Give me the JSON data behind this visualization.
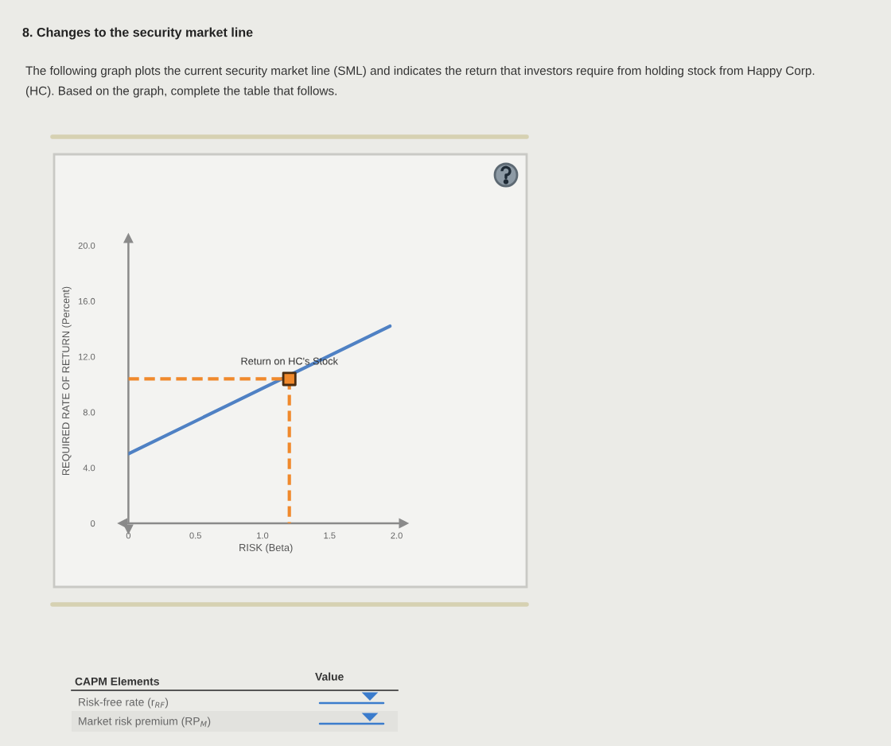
{
  "chart_data": {
    "type": "line",
    "title": "8. Changes to the security market line",
    "subtitle": "The following graph plots the current security market line (SML) and indicates the return that investors require from holding stock from Happy Corp. (HC). Based on the graph, complete the table that follows.",
    "xlabel": "RISK (Beta)",
    "ylabel": "REQUIRED RATE OF RETURN (Percent)",
    "xlim": [
      0,
      2.05
    ],
    "ylim": [
      0,
      20.5
    ],
    "xticks": [
      0,
      0.5,
      {
        "value": 1,
        "label": "1.0"
      },
      1.5,
      {
        "value": 2,
        "label": "2.0"
      }
    ],
    "yticks": [
      0,
      {
        "value": 4,
        "label": "4.0"
      },
      {
        "value": 8,
        "label": "8.0"
      },
      {
        "value": 12,
        "label": "12.0"
      },
      {
        "value": 16,
        "label": "16.0"
      },
      {
        "value": 20,
        "label": "20.0"
      }
    ],
    "series": [
      {
        "type": "line",
        "color": "#4f81c4",
        "x": [
          0,
          1.95
        ],
        "values": [
          5.0,
          14.2
        ],
        "line_style": "solid",
        "marker": "none"
      },
      {
        "type": "line",
        "color": "#f0892c",
        "x": [
          0,
          1.2
        ],
        "values": [
          10.4,
          10.4
        ],
        "line_style": "dashed",
        "marker": "none"
      },
      {
        "type": "line",
        "color": "#f0892c",
        "x": [
          1.2,
          1.2
        ],
        "values": [
          10.4,
          0
        ],
        "line_style": "dashed",
        "marker": "none"
      },
      {
        "type": "scatter",
        "color": "#f0892c",
        "x": [
          1.2
        ],
        "values": [
          10.4
        ],
        "marker": "square"
      }
    ],
    "annotations": [
      {
        "text": "Return on HC's Stock",
        "x": 1.2,
        "y": 10.4
      },
      "CAPM Elements",
      "Value",
      "Risk-free rate (r$_{RF}$)",
      "Market risk premium (RP$_{M}$)"
    ]
  }
}
